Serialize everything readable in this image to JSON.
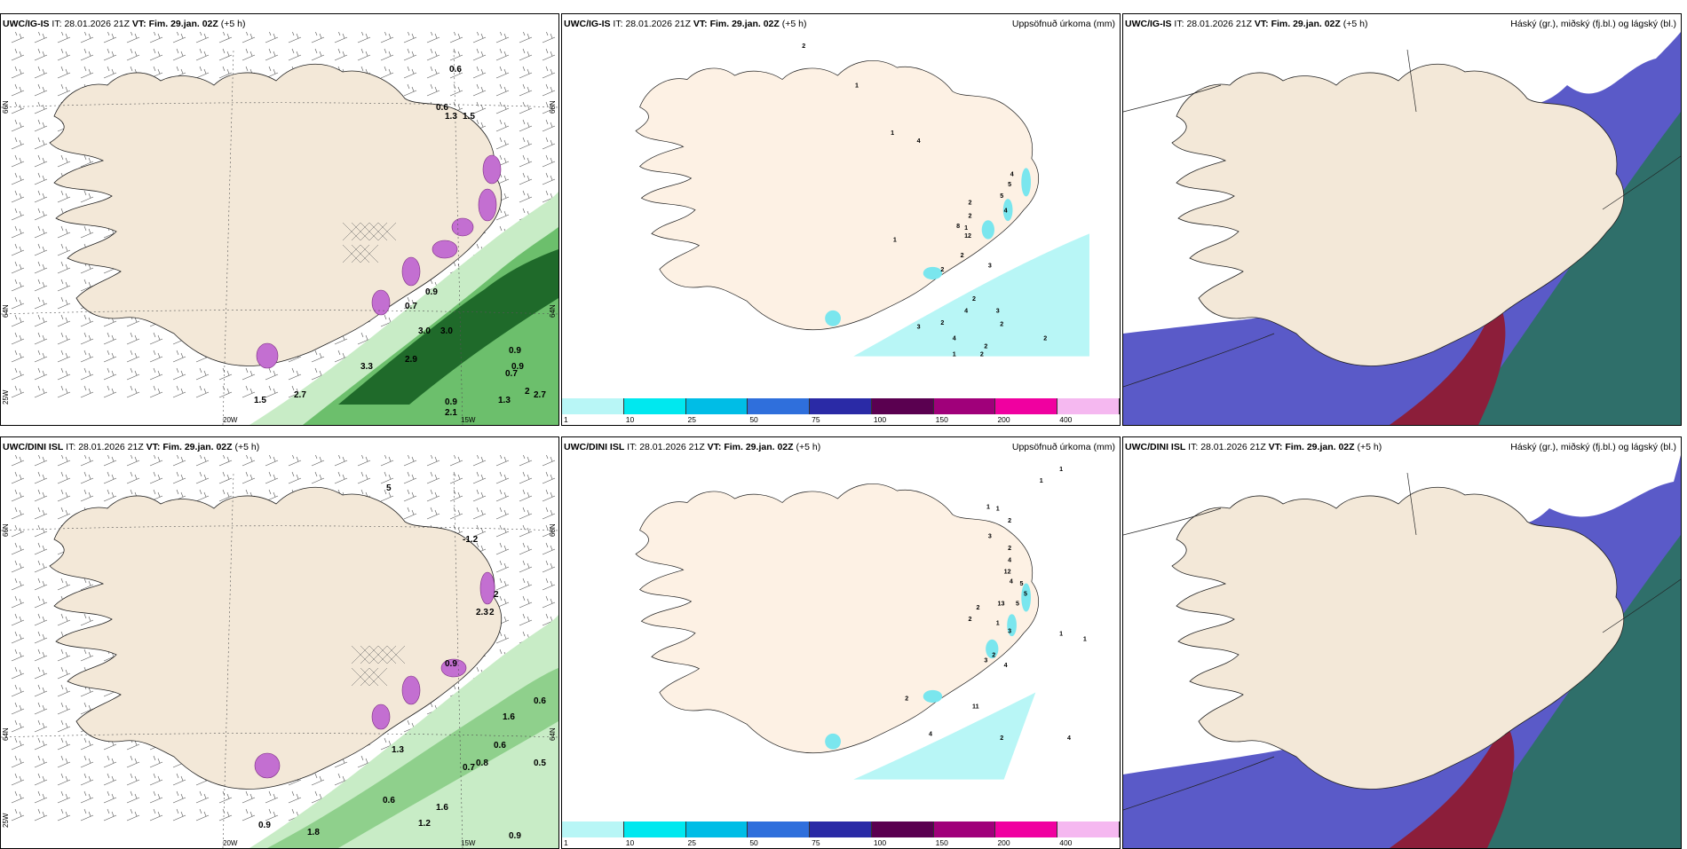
{
  "panels": [
    {
      "id": "top-left",
      "header": {
        "model": "UWC/IG-IS",
        "it_label": "IT:",
        "it": "28.01.2026 21Z",
        "vt_label": "VT:",
        "vt": "Fim. 29.jan. 02Z",
        "lead": "(+5 h)"
      },
      "right_title": "",
      "lat_labels": [
        "66N",
        "64N"
      ],
      "lat_labels_right": [
        "66N",
        "64N"
      ],
      "lon_labels": [
        "25W",
        "20W",
        "15W"
      ],
      "values": [
        "0.6",
        "0.6",
        "1.3",
        "1.5",
        "0.7",
        "0.9",
        "3.0",
        "3.0",
        "2.9",
        "3.3",
        "2.7",
        "1.5",
        "0.9",
        "2.1",
        "1.3",
        "0.9",
        "0.7",
        "0.9",
        "2",
        "2.7"
      ]
    },
    {
      "id": "top-middle",
      "header": {
        "model": "UWC/IG-IS",
        "it_label": "IT:",
        "it": "28.01.2026 21Z",
        "vt_label": "VT:",
        "vt": "Fim. 29.jan. 02Z",
        "lead": "(+5 h)"
      },
      "right_title": "Uppsöfnuð úrkoma (mm)",
      "values": [
        "2",
        "1",
        "1",
        "4",
        "1",
        "4",
        "5",
        "5",
        "2",
        "4",
        "2",
        "1",
        "8",
        "12",
        "2",
        "2",
        "3",
        "2",
        "4",
        "3",
        "2",
        "4",
        "2",
        "3",
        "2",
        "2",
        "1",
        "2"
      ]
    },
    {
      "id": "top-right",
      "header": {
        "model": "UWC/IG-IS",
        "it_label": "IT:",
        "it": "28.01.2026 21Z",
        "vt_label": "VT:",
        "vt": "Fim. 29.jan. 02Z",
        "lead": "(+5 h)"
      },
      "right_title": "Háský (gr.), miðský (fj.bl.) og lágský (bl.)"
    },
    {
      "id": "bottom-left",
      "header": {
        "model": "UWC/DINI ISL",
        "it_label": "IT:",
        "it": "28.01.2026 21Z",
        "vt_label": "VT:",
        "vt": "Fim. 29.jan. 02Z",
        "lead": "(+5 h)"
      },
      "right_title": "",
      "lat_labels": [
        "66N",
        "64N"
      ],
      "lat_labels_right": [
        "66N",
        "64N"
      ],
      "lon_labels": [
        "25W",
        "20W",
        "15W"
      ],
      "values": [
        "-1.2",
        "2",
        "2.3",
        "2",
        "0.9",
        "0.6",
        "1.6",
        "0.6",
        "1.3",
        "0.7",
        "0.8",
        "0.5",
        "0.6",
        "0.9",
        "1.8",
        "1.2",
        "1.6",
        "0.9",
        "5"
      ]
    },
    {
      "id": "bottom-middle",
      "header": {
        "model": "UWC/DINI ISL",
        "it_label": "IT:",
        "it": "28.01.2026 21Z",
        "vt_label": "VT:",
        "vt": "Fim. 29.jan. 02Z",
        "lead": "(+5 h)"
      },
      "right_title": "Uppsöfnuð úrkoma (mm)",
      "values": [
        "1",
        "1",
        "1",
        "1",
        "2",
        "3",
        "2",
        "4",
        "12",
        "4",
        "5",
        "5",
        "5",
        "13",
        "2",
        "2",
        "1",
        "3",
        "1",
        "1",
        "2",
        "3",
        "4",
        "2",
        "11",
        "4",
        "2",
        "4"
      ]
    },
    {
      "id": "bottom-right",
      "header": {
        "model": "UWC/DINI ISL",
        "it_label": "IT:",
        "it": "28.01.2026 21Z",
        "vt_label": "VT:",
        "vt": "Fim. 29.jan. 02Z",
        "lead": "(+5 h)"
      },
      "right_title": "Háský (gr.), miðský (fj.bl.) og lágský (bl.)"
    }
  ],
  "colorbar": {
    "labels": [
      "1",
      "10",
      "25",
      "50",
      "75",
      "100",
      "150",
      "200",
      "400"
    ],
    "colors": [
      "#b8f6f6",
      "#00e8ef",
      "#00bde6",
      "#2f6fdc",
      "#2a2aa6",
      "#5a0050",
      "#a0007a",
      "#f000a0",
      "#f5b8f0"
    ]
  },
  "colors": {
    "land": "#f3e8d8",
    "land_precip": "#fdf1e4",
    "sea": "#ffffff",
    "green_light": "#c8ecc6",
    "green_mid": "#6cbf6c",
    "green_dark": "#1f6a2a",
    "magenta": "#c36fd1",
    "cloud_blue": "#5a5ac8",
    "cloud_red": "#8c1e3a",
    "cloud_teal": "#2f6f6a"
  }
}
